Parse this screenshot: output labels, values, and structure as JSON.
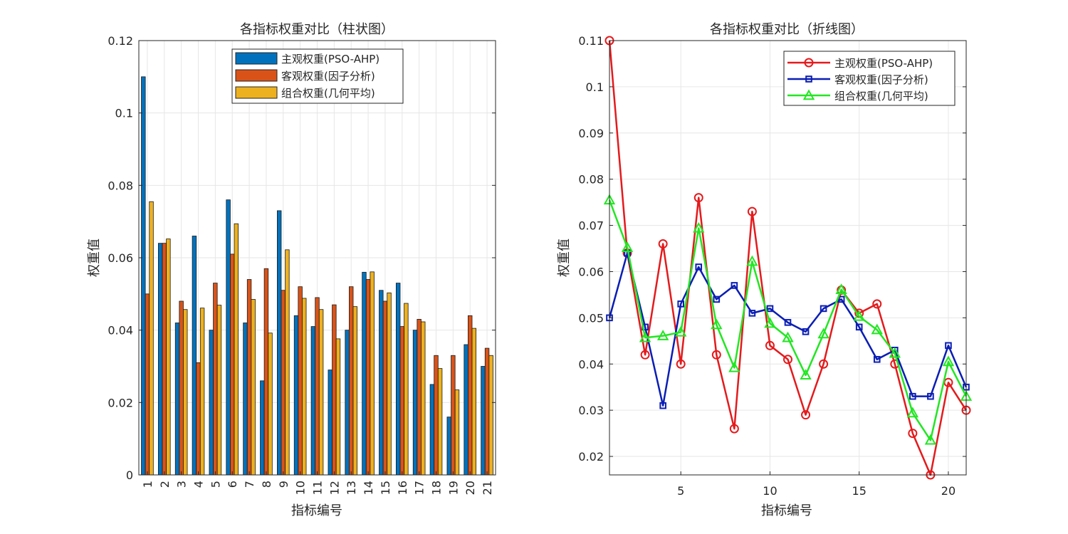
{
  "chart_data": [
    {
      "type": "bar",
      "title": "各指标权重对比（柱状图）",
      "xlabel": "指标编号",
      "ylabel": "权重值",
      "ylim": [
        0,
        0.12
      ],
      "yticks": [
        "0",
        "0.02",
        "0.04",
        "0.06",
        "0.08",
        "0.1",
        "0.12"
      ],
      "grid": true,
      "legend_position": "top-right",
      "categories": [
        "1",
        "2",
        "3",
        "4",
        "5",
        "6",
        "7",
        "8",
        "9",
        "10",
        "11",
        "12",
        "13",
        "14",
        "15",
        "16",
        "17",
        "18",
        "19",
        "20",
        "21"
      ],
      "series": [
        {
          "name": "主观权重(PSO-AHP)",
          "color": "#0072BD",
          "values": [
            0.11,
            0.064,
            0.042,
            0.066,
            0.04,
            0.076,
            0.042,
            0.026,
            0.073,
            0.044,
            0.041,
            0.029,
            0.04,
            0.056,
            0.051,
            0.053,
            0.04,
            0.025,
            0.016,
            0.036,
            0.03
          ]
        },
        {
          "name": "客观权重(因子分析)",
          "color": "#D95319",
          "values": [
            0.05,
            0.064,
            0.048,
            0.031,
            0.053,
            0.061,
            0.054,
            0.057,
            0.051,
            0.052,
            0.049,
            0.047,
            0.052,
            0.054,
            0.048,
            0.041,
            0.043,
            0.033,
            0.033,
            0.044,
            0.035
          ]
        },
        {
          "name": "组合权重(几何平均)",
          "color": "#EDB120",
          "values": [
            0.0755,
            0.0652,
            0.0457,
            0.0461,
            0.0469,
            0.0694,
            0.0485,
            0.0392,
            0.0622,
            0.0488,
            0.0457,
            0.0376,
            0.0465,
            0.0561,
            0.0503,
            0.0474,
            0.0423,
            0.0294,
            0.0235,
            0.0405,
            0.033
          ]
        }
      ]
    },
    {
      "type": "line",
      "title": "各指标权重对比（折线图）",
      "xlabel": "指标编号",
      "ylabel": "权重值",
      "xlim": [
        1,
        21
      ],
      "ylim": [
        0.016,
        0.11
      ],
      "xticks": [
        5,
        10,
        15,
        20
      ],
      "yticks": [
        "0.02",
        "0.03",
        "0.04",
        "0.05",
        "0.06",
        "0.07",
        "0.08",
        "0.09",
        "0.1",
        "0.11"
      ],
      "grid": true,
      "legend_position": "top-right",
      "x": [
        1,
        2,
        3,
        4,
        5,
        6,
        7,
        8,
        9,
        10,
        11,
        12,
        13,
        14,
        15,
        16,
        17,
        18,
        19,
        20,
        21
      ],
      "series": [
        {
          "name": "主观权重(PSO-AHP)",
          "color": "#E41A1C",
          "marker": "circle",
          "values": [
            0.11,
            0.064,
            0.042,
            0.066,
            0.04,
            0.076,
            0.042,
            0.026,
            0.073,
            0.044,
            0.041,
            0.029,
            0.04,
            0.056,
            0.051,
            0.053,
            0.04,
            0.025,
            0.016,
            0.036,
            0.03
          ]
        },
        {
          "name": "客观权重(因子分析)",
          "color": "#0A1EB4",
          "marker": "square",
          "values": [
            0.05,
            0.064,
            0.048,
            0.031,
            0.053,
            0.061,
            0.054,
            0.057,
            0.051,
            0.052,
            0.049,
            0.047,
            0.052,
            0.054,
            0.048,
            0.041,
            0.043,
            0.033,
            0.033,
            0.044,
            0.035
          ]
        },
        {
          "name": "组合权重(几何平均)",
          "color": "#22E622",
          "marker": "triangle",
          "values": [
            0.0755,
            0.0652,
            0.0457,
            0.0461,
            0.0469,
            0.0694,
            0.0485,
            0.0392,
            0.0622,
            0.0488,
            0.0457,
            0.0376,
            0.0465,
            0.0561,
            0.0503,
            0.0474,
            0.0423,
            0.0294,
            0.0235,
            0.0405,
            0.033
          ]
        }
      ]
    }
  ]
}
